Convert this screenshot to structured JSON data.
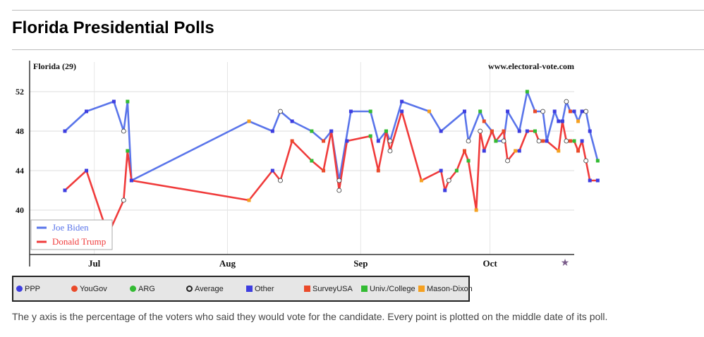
{
  "page": {
    "title": "Florida Presidential Polls",
    "footnote": "The y axis is the percentage of the voters who said they would vote for the candidate. Every point is plotted on the middle date of its poll."
  },
  "chart_data": {
    "type": "line",
    "title": "Florida (29)",
    "source": "www.electoral-vote.com",
    "x_unit": "day of year 2020",
    "xlim": [
      170,
      309
    ],
    "ylim": [
      35.5,
      55
    ],
    "yticks": [
      40,
      44,
      48,
      52
    ],
    "grid": true,
    "xticks": [
      {
        "label": "Jul",
        "x": 186.5
      },
      {
        "label": "Aug",
        "x": 220.5
      },
      {
        "label": "Sep",
        "x": 254.5
      },
      {
        "label": "Oct",
        "x": 287.5
      }
    ],
    "end_marker": "★",
    "series": [
      {
        "name": "Joe Biden",
        "color": "#5a75ea",
        "points": [
          [
            179,
            48
          ],
          [
            184.5,
            50
          ],
          [
            191.5,
            51
          ],
          [
            194,
            48
          ],
          [
            195,
            51
          ],
          [
            196,
            43
          ],
          [
            226,
            49
          ],
          [
            232,
            48
          ],
          [
            234,
            50
          ],
          [
            237,
            49
          ],
          [
            242,
            48
          ],
          [
            245,
            47
          ],
          [
            247,
            48
          ],
          [
            249,
            43
          ],
          [
            252,
            50
          ],
          [
            257,
            50
          ],
          [
            259,
            47
          ],
          [
            261,
            48
          ],
          [
            262,
            47
          ],
          [
            265,
            51
          ],
          [
            272,
            50
          ],
          [
            275,
            48
          ],
          [
            281,
            50
          ],
          [
            282,
            47
          ],
          [
            285,
            50
          ],
          [
            286,
            49
          ],
          [
            288,
            48
          ],
          [
            289,
            47
          ],
          [
            291,
            47
          ],
          [
            292,
            50
          ],
          [
            295,
            48
          ],
          [
            297,
            52
          ],
          [
            299,
            50
          ],
          [
            301,
            50
          ],
          [
            302,
            47
          ],
          [
            304,
            50
          ],
          [
            305,
            49
          ],
          [
            306,
            49
          ],
          [
            307,
            51
          ],
          [
            308,
            50
          ],
          [
            309,
            50
          ],
          [
            310,
            49
          ],
          [
            311,
            50
          ],
          [
            312,
            50
          ],
          [
            313,
            48
          ],
          [
            315,
            45
          ]
        ]
      },
      {
        "name": "Donald Trump",
        "color": "#f03b3b",
        "points": [
          [
            179,
            42
          ],
          [
            184.5,
            44
          ],
          [
            190,
            37.5
          ],
          [
            194,
            41
          ],
          [
            195,
            46
          ],
          [
            196,
            43
          ],
          [
            226,
            41
          ],
          [
            232,
            44
          ],
          [
            234,
            43
          ],
          [
            237,
            47
          ],
          [
            242,
            45
          ],
          [
            245,
            44
          ],
          [
            247,
            48
          ],
          [
            249,
            42
          ],
          [
            251,
            47
          ],
          [
            257,
            47.5
          ],
          [
            259,
            44
          ],
          [
            261,
            48
          ],
          [
            262,
            46
          ],
          [
            265,
            50
          ],
          [
            270,
            43
          ],
          [
            275,
            44
          ],
          [
            276,
            42
          ],
          [
            277,
            43
          ],
          [
            279,
            44
          ],
          [
            281,
            46
          ],
          [
            282,
            45
          ],
          [
            284,
            40
          ],
          [
            285,
            48
          ],
          [
            286,
            46
          ],
          [
            288,
            48
          ],
          [
            289,
            47
          ],
          [
            291,
            48
          ],
          [
            292,
            45
          ],
          [
            294,
            46
          ],
          [
            295,
            46
          ],
          [
            297,
            48
          ],
          [
            299,
            48
          ],
          [
            300,
            47
          ],
          [
            301,
            47
          ],
          [
            302,
            47
          ],
          [
            305,
            46
          ],
          [
            306,
            49
          ],
          [
            307,
            47
          ],
          [
            308,
            47
          ],
          [
            309,
            47
          ],
          [
            310,
            46
          ],
          [
            311,
            47
          ],
          [
            312,
            45
          ],
          [
            313,
            43
          ],
          [
            315,
            43
          ]
        ]
      }
    ],
    "pollsters": [
      {
        "name": "PPP",
        "color": "#3d3de0",
        "shape": "dot"
      },
      {
        "name": "YouGov",
        "color": "#ea4a2a",
        "shape": "dot"
      },
      {
        "name": "ARG",
        "color": "#33bb33",
        "shape": "dot"
      },
      {
        "name": "Average",
        "color": "#222222",
        "shape": "ring"
      },
      {
        "name": "Other",
        "color": "#3d3de0",
        "shape": "square"
      },
      {
        "name": "SurveyUSA",
        "color": "#ea4a2a",
        "shape": "square"
      },
      {
        "name": "Univ./College",
        "color": "#33bb33",
        "shape": "square"
      },
      {
        "name": "Mason-Dixon",
        "color": "#f5a020",
        "shape": "square"
      }
    ]
  }
}
